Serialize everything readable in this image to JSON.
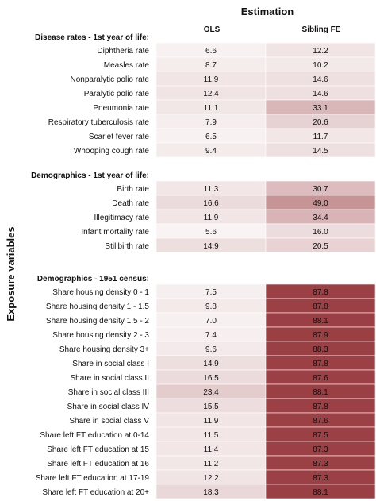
{
  "chart_data": {
    "type": "heatmap",
    "title": "Estimation",
    "ylabel": "Exposure variables",
    "columns": [
      "OLS",
      "Sibling FE"
    ],
    "color_scale": {
      "low": "#ffffff",
      "high": "#983b3f",
      "min": 0,
      "max": 90
    },
    "groups": [
      {
        "label": "Disease rates - 1st year of life:",
        "rows": [
          {
            "label": "Diphtheria rate",
            "values": [
              6.6,
              12.2
            ]
          },
          {
            "label": "Measles rate",
            "values": [
              8.7,
              10.2
            ]
          },
          {
            "label": "Nonparalytic polio rate",
            "values": [
              11.9,
              14.6
            ]
          },
          {
            "label": "Paralytic polio rate",
            "values": [
              12.4,
              14.6
            ]
          },
          {
            "label": "Pneumonia rate",
            "values": [
              11.1,
              33.1
            ]
          },
          {
            "label": "Respiratory tuberculosis rate",
            "values": [
              7.9,
              20.6
            ]
          },
          {
            "label": "Scarlet fever rate",
            "values": [
              6.5,
              11.7
            ]
          },
          {
            "label": "Whooping cough rate",
            "values": [
              9.4,
              14.5
            ]
          }
        ]
      },
      {
        "label": "Demographics - 1st year of life:",
        "rows": [
          {
            "label": "Birth rate",
            "values": [
              11.3,
              30.7
            ]
          },
          {
            "label": "Death rate",
            "values": [
              16.6,
              49.0
            ]
          },
          {
            "label": "Illegitimacy rate",
            "values": [
              11.9,
              34.4
            ]
          },
          {
            "label": "Infant mortality rate",
            "values": [
              5.6,
              16.0
            ]
          },
          {
            "label": "Stillbirth rate",
            "values": [
              14.9,
              20.5
            ]
          }
        ]
      },
      {
        "label": "Demographics - 1951 census:",
        "rows": [
          {
            "label": "Share housing density 0 - 1",
            "values": [
              7.5,
              87.8
            ]
          },
          {
            "label": "Share housing density 1 - 1.5",
            "values": [
              9.8,
              87.8
            ]
          },
          {
            "label": "Share housing density 1.5 - 2",
            "values": [
              7.0,
              88.1
            ]
          },
          {
            "label": "Share housing density 2 - 3",
            "values": [
              7.4,
              87.9
            ]
          },
          {
            "label": "Share housing density 3+",
            "values": [
              9.6,
              88.3
            ]
          },
          {
            "label": "Share in social class I",
            "values": [
              14.9,
              87.8
            ]
          },
          {
            "label": "Share in social class II",
            "values": [
              16.5,
              87.6
            ]
          },
          {
            "label": "Share in social class III",
            "values": [
              23.4,
              88.1
            ]
          },
          {
            "label": "Share in social class IV",
            "values": [
              15.5,
              87.8
            ]
          },
          {
            "label": "Share in social class V",
            "values": [
              11.9,
              87.6
            ]
          },
          {
            "label": "Share left FT education at 0-14",
            "values": [
              11.5,
              87.5
            ]
          },
          {
            "label": "Share left FT education at 15",
            "values": [
              11.4,
              87.3
            ]
          },
          {
            "label": "Share left FT education at 16",
            "values": [
              11.2,
              87.3
            ]
          },
          {
            "label": "Share left FT education at 17-19",
            "values": [
              12.2,
              87.3
            ]
          },
          {
            "label": "Share left FT education at 20+",
            "values": [
              18.3,
              88.1
            ]
          }
        ]
      }
    ]
  }
}
